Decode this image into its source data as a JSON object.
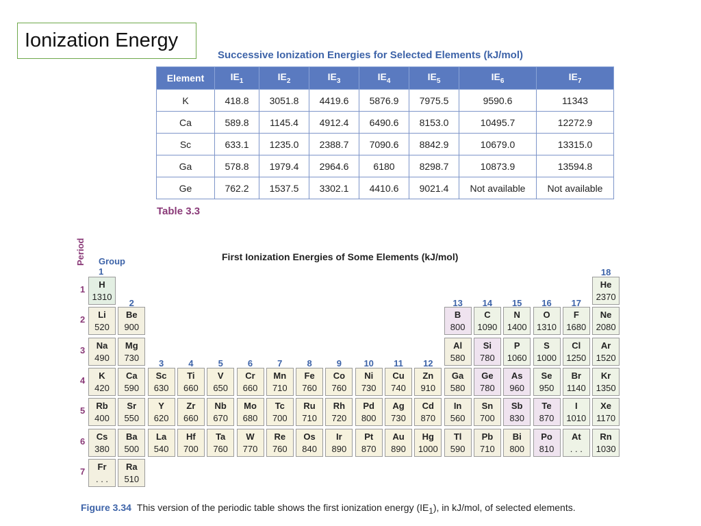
{
  "slide": {
    "title": "Ionization Energy"
  },
  "table": {
    "caption": "Successive Ionization Energies for Selected Elements (kJ/mol)",
    "header_element": "Element",
    "header_base": "IE",
    "header_subs": [
      "1",
      "2",
      "3",
      "4",
      "5",
      "6",
      "7"
    ],
    "rows": [
      [
        "K",
        "418.8",
        "3051.8",
        "4419.6",
        "5876.9",
        "7975.5",
        "9590.6",
        "11343"
      ],
      [
        "Ca",
        "589.8",
        "1145.4",
        "4912.4",
        "6490.6",
        "8153.0",
        "10495.7",
        "12272.9"
      ],
      [
        "Sc",
        "633.1",
        "1235.0",
        "2388.7",
        "7090.6",
        "8842.9",
        "10679.0",
        "13315.0"
      ],
      [
        "Ga",
        "578.8",
        "1979.4",
        "2964.6",
        "6180",
        "8298.7",
        "10873.9",
        "13594.8"
      ],
      [
        "Ge",
        "762.2",
        "1537.5",
        "3302.1",
        "4410.6",
        "9021.4",
        "Not available",
        "Not available"
      ]
    ],
    "label": "Table 3.3"
  },
  "periodic_table": {
    "title": "First Ionization Energies of Some Elements (kJ/mol)",
    "period_axis": "Period",
    "group_axis": "Group",
    "period_numbers": [
      "1",
      "2",
      "3",
      "4",
      "5",
      "6",
      "7"
    ],
    "group_numbers": [
      "1",
      "2",
      "3",
      "4",
      "5",
      "6",
      "7",
      "8",
      "9",
      "10",
      "11",
      "12",
      "13",
      "14",
      "15",
      "16",
      "17",
      "18"
    ],
    "elements": [
      {
        "symbol": "H",
        "value": "1310",
        "period": 1,
        "group": 1,
        "category": "hydrogen"
      },
      {
        "symbol": "He",
        "value": "2370",
        "period": 1,
        "group": 18,
        "category": "noble"
      },
      {
        "symbol": "Li",
        "value": "520",
        "period": 2,
        "group": 1,
        "category": "s"
      },
      {
        "symbol": "Be",
        "value": "900",
        "period": 2,
        "group": 2,
        "category": "s"
      },
      {
        "symbol": "B",
        "value": "800",
        "period": 2,
        "group": 13,
        "category": "metalloid"
      },
      {
        "symbol": "C",
        "value": "1090",
        "period": 2,
        "group": 14,
        "category": "nonmetal"
      },
      {
        "symbol": "N",
        "value": "1400",
        "period": 2,
        "group": 15,
        "category": "nonmetal"
      },
      {
        "symbol": "O",
        "value": "1310",
        "period": 2,
        "group": 16,
        "category": "nonmetal"
      },
      {
        "symbol": "F",
        "value": "1680",
        "period": 2,
        "group": 17,
        "category": "nonmetal"
      },
      {
        "symbol": "Ne",
        "value": "2080",
        "period": 2,
        "group": 18,
        "category": "noble"
      },
      {
        "symbol": "Na",
        "value": "490",
        "period": 3,
        "group": 1,
        "category": "s"
      },
      {
        "symbol": "Mg",
        "value": "730",
        "period": 3,
        "group": 2,
        "category": "s"
      },
      {
        "symbol": "Al",
        "value": "580",
        "period": 3,
        "group": 13,
        "category": "pmetal"
      },
      {
        "symbol": "Si",
        "value": "780",
        "period": 3,
        "group": 14,
        "category": "metalloid"
      },
      {
        "symbol": "P",
        "value": "1060",
        "period": 3,
        "group": 15,
        "category": "nonmetal"
      },
      {
        "symbol": "S",
        "value": "1000",
        "period": 3,
        "group": 16,
        "category": "nonmetal"
      },
      {
        "symbol": "Cl",
        "value": "1250",
        "period": 3,
        "group": 17,
        "category": "nonmetal"
      },
      {
        "symbol": "Ar",
        "value": "1520",
        "period": 3,
        "group": 18,
        "category": "noble"
      },
      {
        "symbol": "K",
        "value": "420",
        "period": 4,
        "group": 1,
        "category": "s"
      },
      {
        "symbol": "Ca",
        "value": "590",
        "period": 4,
        "group": 2,
        "category": "s"
      },
      {
        "symbol": "Sc",
        "value": "630",
        "period": 4,
        "group": 3,
        "category": "d"
      },
      {
        "symbol": "Ti",
        "value": "660",
        "period": 4,
        "group": 4,
        "category": "d"
      },
      {
        "symbol": "V",
        "value": "650",
        "period": 4,
        "group": 5,
        "category": "d"
      },
      {
        "symbol": "Cr",
        "value": "660",
        "period": 4,
        "group": 6,
        "category": "d"
      },
      {
        "symbol": "Mn",
        "value": "710",
        "period": 4,
        "group": 7,
        "category": "d"
      },
      {
        "symbol": "Fe",
        "value": "760",
        "period": 4,
        "group": 8,
        "category": "d"
      },
      {
        "symbol": "Co",
        "value": "760",
        "period": 4,
        "group": 9,
        "category": "d"
      },
      {
        "symbol": "Ni",
        "value": "730",
        "period": 4,
        "group": 10,
        "category": "d"
      },
      {
        "symbol": "Cu",
        "value": "740",
        "period": 4,
        "group": 11,
        "category": "d"
      },
      {
        "symbol": "Zn",
        "value": "910",
        "period": 4,
        "group": 12,
        "category": "d"
      },
      {
        "symbol": "Ga",
        "value": "580",
        "period": 4,
        "group": 13,
        "category": "pmetal"
      },
      {
        "symbol": "Ge",
        "value": "780",
        "period": 4,
        "group": 14,
        "category": "metalloid"
      },
      {
        "symbol": "As",
        "value": "960",
        "period": 4,
        "group": 15,
        "category": "metalloid"
      },
      {
        "symbol": "Se",
        "value": "950",
        "period": 4,
        "group": 16,
        "category": "nonmetal"
      },
      {
        "symbol": "Br",
        "value": "1140",
        "period": 4,
        "group": 17,
        "category": "nonmetal"
      },
      {
        "symbol": "Kr",
        "value": "1350",
        "period": 4,
        "group": 18,
        "category": "noble"
      },
      {
        "symbol": "Rb",
        "value": "400",
        "period": 5,
        "group": 1,
        "category": "s"
      },
      {
        "symbol": "Sr",
        "value": "550",
        "period": 5,
        "group": 2,
        "category": "s"
      },
      {
        "symbol": "Y",
        "value": "620",
        "period": 5,
        "group": 3,
        "category": "d"
      },
      {
        "symbol": "Zr",
        "value": "660",
        "period": 5,
        "group": 4,
        "category": "d"
      },
      {
        "symbol": "Nb",
        "value": "670",
        "period": 5,
        "group": 5,
        "category": "d"
      },
      {
        "symbol": "Mo",
        "value": "680",
        "period": 5,
        "group": 6,
        "category": "d"
      },
      {
        "symbol": "Tc",
        "value": "700",
        "period": 5,
        "group": 7,
        "category": "d"
      },
      {
        "symbol": "Ru",
        "value": "710",
        "period": 5,
        "group": 8,
        "category": "d"
      },
      {
        "symbol": "Rh",
        "value": "720",
        "period": 5,
        "group": 9,
        "category": "d"
      },
      {
        "symbol": "Pd",
        "value": "800",
        "period": 5,
        "group": 10,
        "category": "d"
      },
      {
        "symbol": "Ag",
        "value": "730",
        "period": 5,
        "group": 11,
        "category": "d"
      },
      {
        "symbol": "Cd",
        "value": "870",
        "period": 5,
        "group": 12,
        "category": "d"
      },
      {
        "symbol": "In",
        "value": "560",
        "period": 5,
        "group": 13,
        "category": "pmetal"
      },
      {
        "symbol": "Sn",
        "value": "700",
        "period": 5,
        "group": 14,
        "category": "pmetal"
      },
      {
        "symbol": "Sb",
        "value": "830",
        "period": 5,
        "group": 15,
        "category": "metalloid"
      },
      {
        "symbol": "Te",
        "value": "870",
        "period": 5,
        "group": 16,
        "category": "metalloid"
      },
      {
        "symbol": "I",
        "value": "1010",
        "period": 5,
        "group": 17,
        "category": "nonmetal"
      },
      {
        "symbol": "Xe",
        "value": "1170",
        "period": 5,
        "group": 18,
        "category": "noble"
      },
      {
        "symbol": "Cs",
        "value": "380",
        "period": 6,
        "group": 1,
        "category": "s"
      },
      {
        "symbol": "Ba",
        "value": "500",
        "period": 6,
        "group": 2,
        "category": "s"
      },
      {
        "symbol": "La",
        "value": "540",
        "period": 6,
        "group": 3,
        "category": "d"
      },
      {
        "symbol": "Hf",
        "value": "700",
        "period": 6,
        "group": 4,
        "category": "d"
      },
      {
        "symbol": "Ta",
        "value": "760",
        "period": 6,
        "group": 5,
        "category": "d"
      },
      {
        "symbol": "W",
        "value": "770",
        "period": 6,
        "group": 6,
        "category": "d"
      },
      {
        "symbol": "Re",
        "value": "760",
        "period": 6,
        "group": 7,
        "category": "d"
      },
      {
        "symbol": "Os",
        "value": "840",
        "period": 6,
        "group": 8,
        "category": "d"
      },
      {
        "symbol": "Ir",
        "value": "890",
        "period": 6,
        "group": 9,
        "category": "d"
      },
      {
        "symbol": "Pt",
        "value": "870",
        "period": 6,
        "group": 10,
        "category": "d"
      },
      {
        "symbol": "Au",
        "value": "890",
        "period": 6,
        "group": 11,
        "category": "d"
      },
      {
        "symbol": "Hg",
        "value": "1000",
        "period": 6,
        "group": 12,
        "category": "d"
      },
      {
        "symbol": "Tl",
        "value": "590",
        "period": 6,
        "group": 13,
        "category": "pmetal"
      },
      {
        "symbol": "Pb",
        "value": "710",
        "period": 6,
        "group": 14,
        "category": "pmetal"
      },
      {
        "symbol": "Bi",
        "value": "800",
        "period": 6,
        "group": 15,
        "category": "pmetal"
      },
      {
        "symbol": "Po",
        "value": "810",
        "period": 6,
        "group": 16,
        "category": "metalloid"
      },
      {
        "symbol": "At",
        "value": ". . .",
        "period": 6,
        "group": 17,
        "category": "nonmetal"
      },
      {
        "symbol": "Rn",
        "value": "1030",
        "period": 6,
        "group": 18,
        "category": "noble"
      },
      {
        "symbol": "Fr",
        "value": ". . .",
        "period": 7,
        "group": 1,
        "category": "s"
      },
      {
        "symbol": "Ra",
        "value": "510",
        "period": 7,
        "group": 2,
        "category": "s"
      }
    ]
  },
  "figure": {
    "label": "Figure 3.34",
    "caption_before": "This version of the periodic table shows the first ionization energy (IE",
    "caption_sub": "1",
    "caption_after": "), in kJ/mol, of selected elements."
  },
  "colors": {
    "header_blue": "#5a7ac0",
    "accent_purple": "#8a3a78",
    "group_blue": "#3d63a8",
    "title_border_green": "#6ea84a"
  }
}
